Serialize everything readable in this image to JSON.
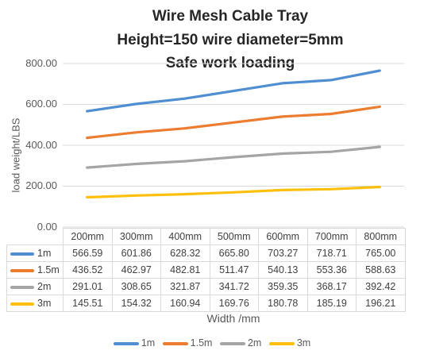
{
  "chart_data": {
    "type": "line",
    "title_lines": [
      "Wire Mesh Cable Tray",
      "Height=150  wire diameter=5mm",
      "Safe work loading"
    ],
    "xlabel": "Width /mm",
    "ylabel": "load weight/LBS",
    "categories": [
      "200mm",
      "300mm",
      "400mm",
      "500mm",
      "600mm",
      "700mm",
      "800mm"
    ],
    "ylim": [
      0,
      800
    ],
    "yticks": [
      "0.00",
      "200.00",
      "400.00",
      "600.00",
      "800.00"
    ],
    "grid": true,
    "legend": "bottom",
    "series": [
      {
        "name": "1m",
        "color": "#4f8ed1",
        "values": [
          566.59,
          601.86,
          628.32,
          665.8,
          703.27,
          718.71,
          765.0
        ],
        "labels": [
          "566.59",
          "601.86",
          "628.32",
          "665.80",
          "703.27",
          "718.71",
          "765.00"
        ]
      },
      {
        "name": "1.5m",
        "color": "#ec7c30",
        "values": [
          436.52,
          462.97,
          482.81,
          511.47,
          540.13,
          553.36,
          588.63
        ],
        "labels": [
          "436.52",
          "462.97",
          "482.81",
          "511.47",
          "540.13",
          "553.36",
          "588.63"
        ]
      },
      {
        "name": "2m",
        "color": "#a5a5a5",
        "values": [
          291.01,
          308.65,
          321.87,
          341.72,
          359.35,
          368.17,
          392.42
        ],
        "labels": [
          "291.01",
          "308.65",
          "321.87",
          "341.72",
          "359.35",
          "368.17",
          "392.42"
        ]
      },
      {
        "name": "3m",
        "color": "#fdc00f",
        "values": [
          145.51,
          154.32,
          160.94,
          169.76,
          180.78,
          185.19,
          196.21
        ],
        "labels": [
          "145.51",
          "154.32",
          "160.94",
          "169.76",
          "180.78",
          "185.19",
          "196.21"
        ]
      }
    ]
  }
}
